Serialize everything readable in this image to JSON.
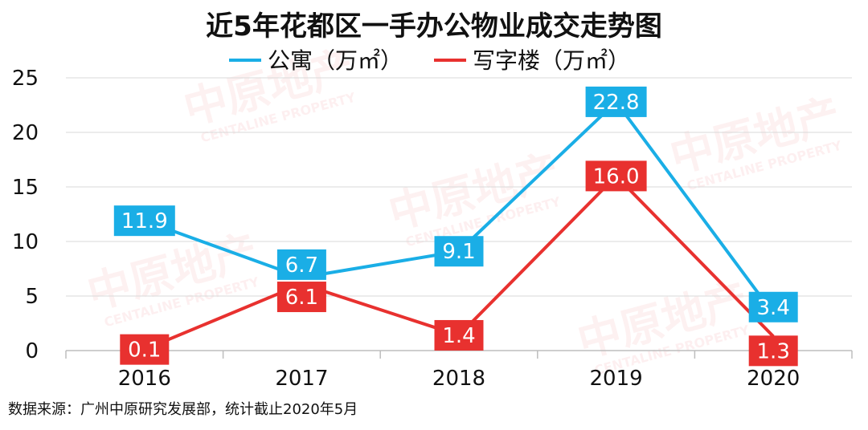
{
  "chart_data": {
    "type": "line",
    "title": "近5年花都区一手办公物业成交走势图",
    "categories": [
      "2016",
      "2017",
      "2018",
      "2019",
      "2020"
    ],
    "series": [
      {
        "name": "公寓（万㎡）",
        "color": "#1aaee6",
        "values": [
          11.9,
          6.7,
          9.1,
          22.8,
          3.4
        ]
      },
      {
        "name": "写字楼（万㎡）",
        "color": "#e8312f",
        "values": [
          0.1,
          6.1,
          1.4,
          16.0,
          1.3
        ]
      }
    ],
    "yticks": [
      "0",
      "5",
      "10",
      "15",
      "20",
      "25"
    ],
    "ylim": [
      0,
      25
    ],
    "legend": "top-center",
    "grid": true
  },
  "source": "数据来源：广州中原研究发展部，统计截止2020年5月",
  "watermark": {
    "cn": "中原地产",
    "en": "CENTALINE PROPERTY"
  }
}
